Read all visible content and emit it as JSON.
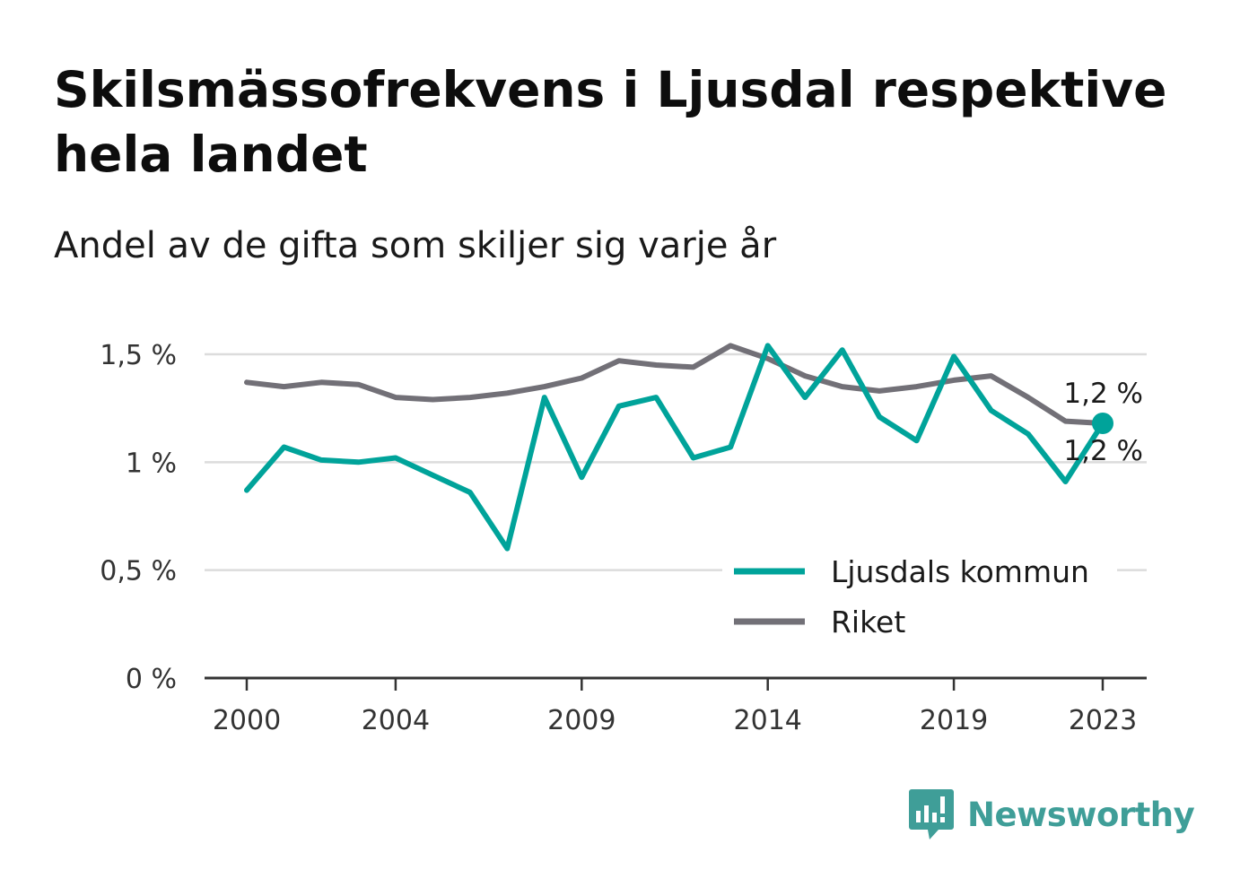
{
  "header": {
    "title": "Skilsmässofrekvens i Ljusdal respektive hela landet",
    "subtitle": "Andel av de gifta som skiljer sig varje år"
  },
  "chart_data": {
    "type": "line",
    "title": "Skilsmässofrekvens i Ljusdal respektive hela landet",
    "subtitle": "Andel av de gifta som skiljer sig varje år",
    "xlabel": "",
    "ylabel": "",
    "x": [
      2000,
      2001,
      2002,
      2003,
      2004,
      2005,
      2006,
      2007,
      2008,
      2009,
      2010,
      2011,
      2012,
      2013,
      2014,
      2015,
      2016,
      2017,
      2018,
      2019,
      2020,
      2021,
      2022,
      2023
    ],
    "x_ticks": [
      2000,
      2004,
      2009,
      2014,
      2019,
      2023
    ],
    "x_tick_labels": [
      "2000",
      "2004",
      "2009",
      "2014",
      "2019",
      "2023"
    ],
    "ylim": [
      0,
      1.6
    ],
    "y_ticks": [
      0,
      0.5,
      1,
      1.5
    ],
    "y_tick_labels": [
      "0 %",
      "0,5 %",
      "1 %",
      "1,5 %"
    ],
    "grid": true,
    "legend_position": "bottom-right",
    "series": [
      {
        "name": "Ljusdals kommun",
        "color": "#00a39a",
        "values": [
          0.87,
          1.07,
          1.01,
          1.0,
          1.02,
          0.94,
          0.86,
          0.6,
          1.3,
          0.93,
          1.26,
          1.3,
          1.02,
          1.07,
          1.54,
          1.3,
          1.52,
          1.21,
          1.1,
          1.49,
          1.24,
          1.13,
          0.91,
          1.18
        ],
        "end_label": "1,2 %"
      },
      {
        "name": "Riket",
        "color": "#727077",
        "values": [
          1.37,
          1.35,
          1.37,
          1.36,
          1.3,
          1.29,
          1.3,
          1.32,
          1.35,
          1.39,
          1.47,
          1.45,
          1.44,
          1.54,
          1.48,
          1.4,
          1.35,
          1.33,
          1.35,
          1.38,
          1.4,
          1.3,
          1.19,
          1.18
        ],
        "end_label": "1,2 %"
      }
    ]
  },
  "logo": {
    "text": "Newsworthy",
    "icon": "bar-chart-speech-bubble-icon",
    "color": "#3f9e98"
  }
}
